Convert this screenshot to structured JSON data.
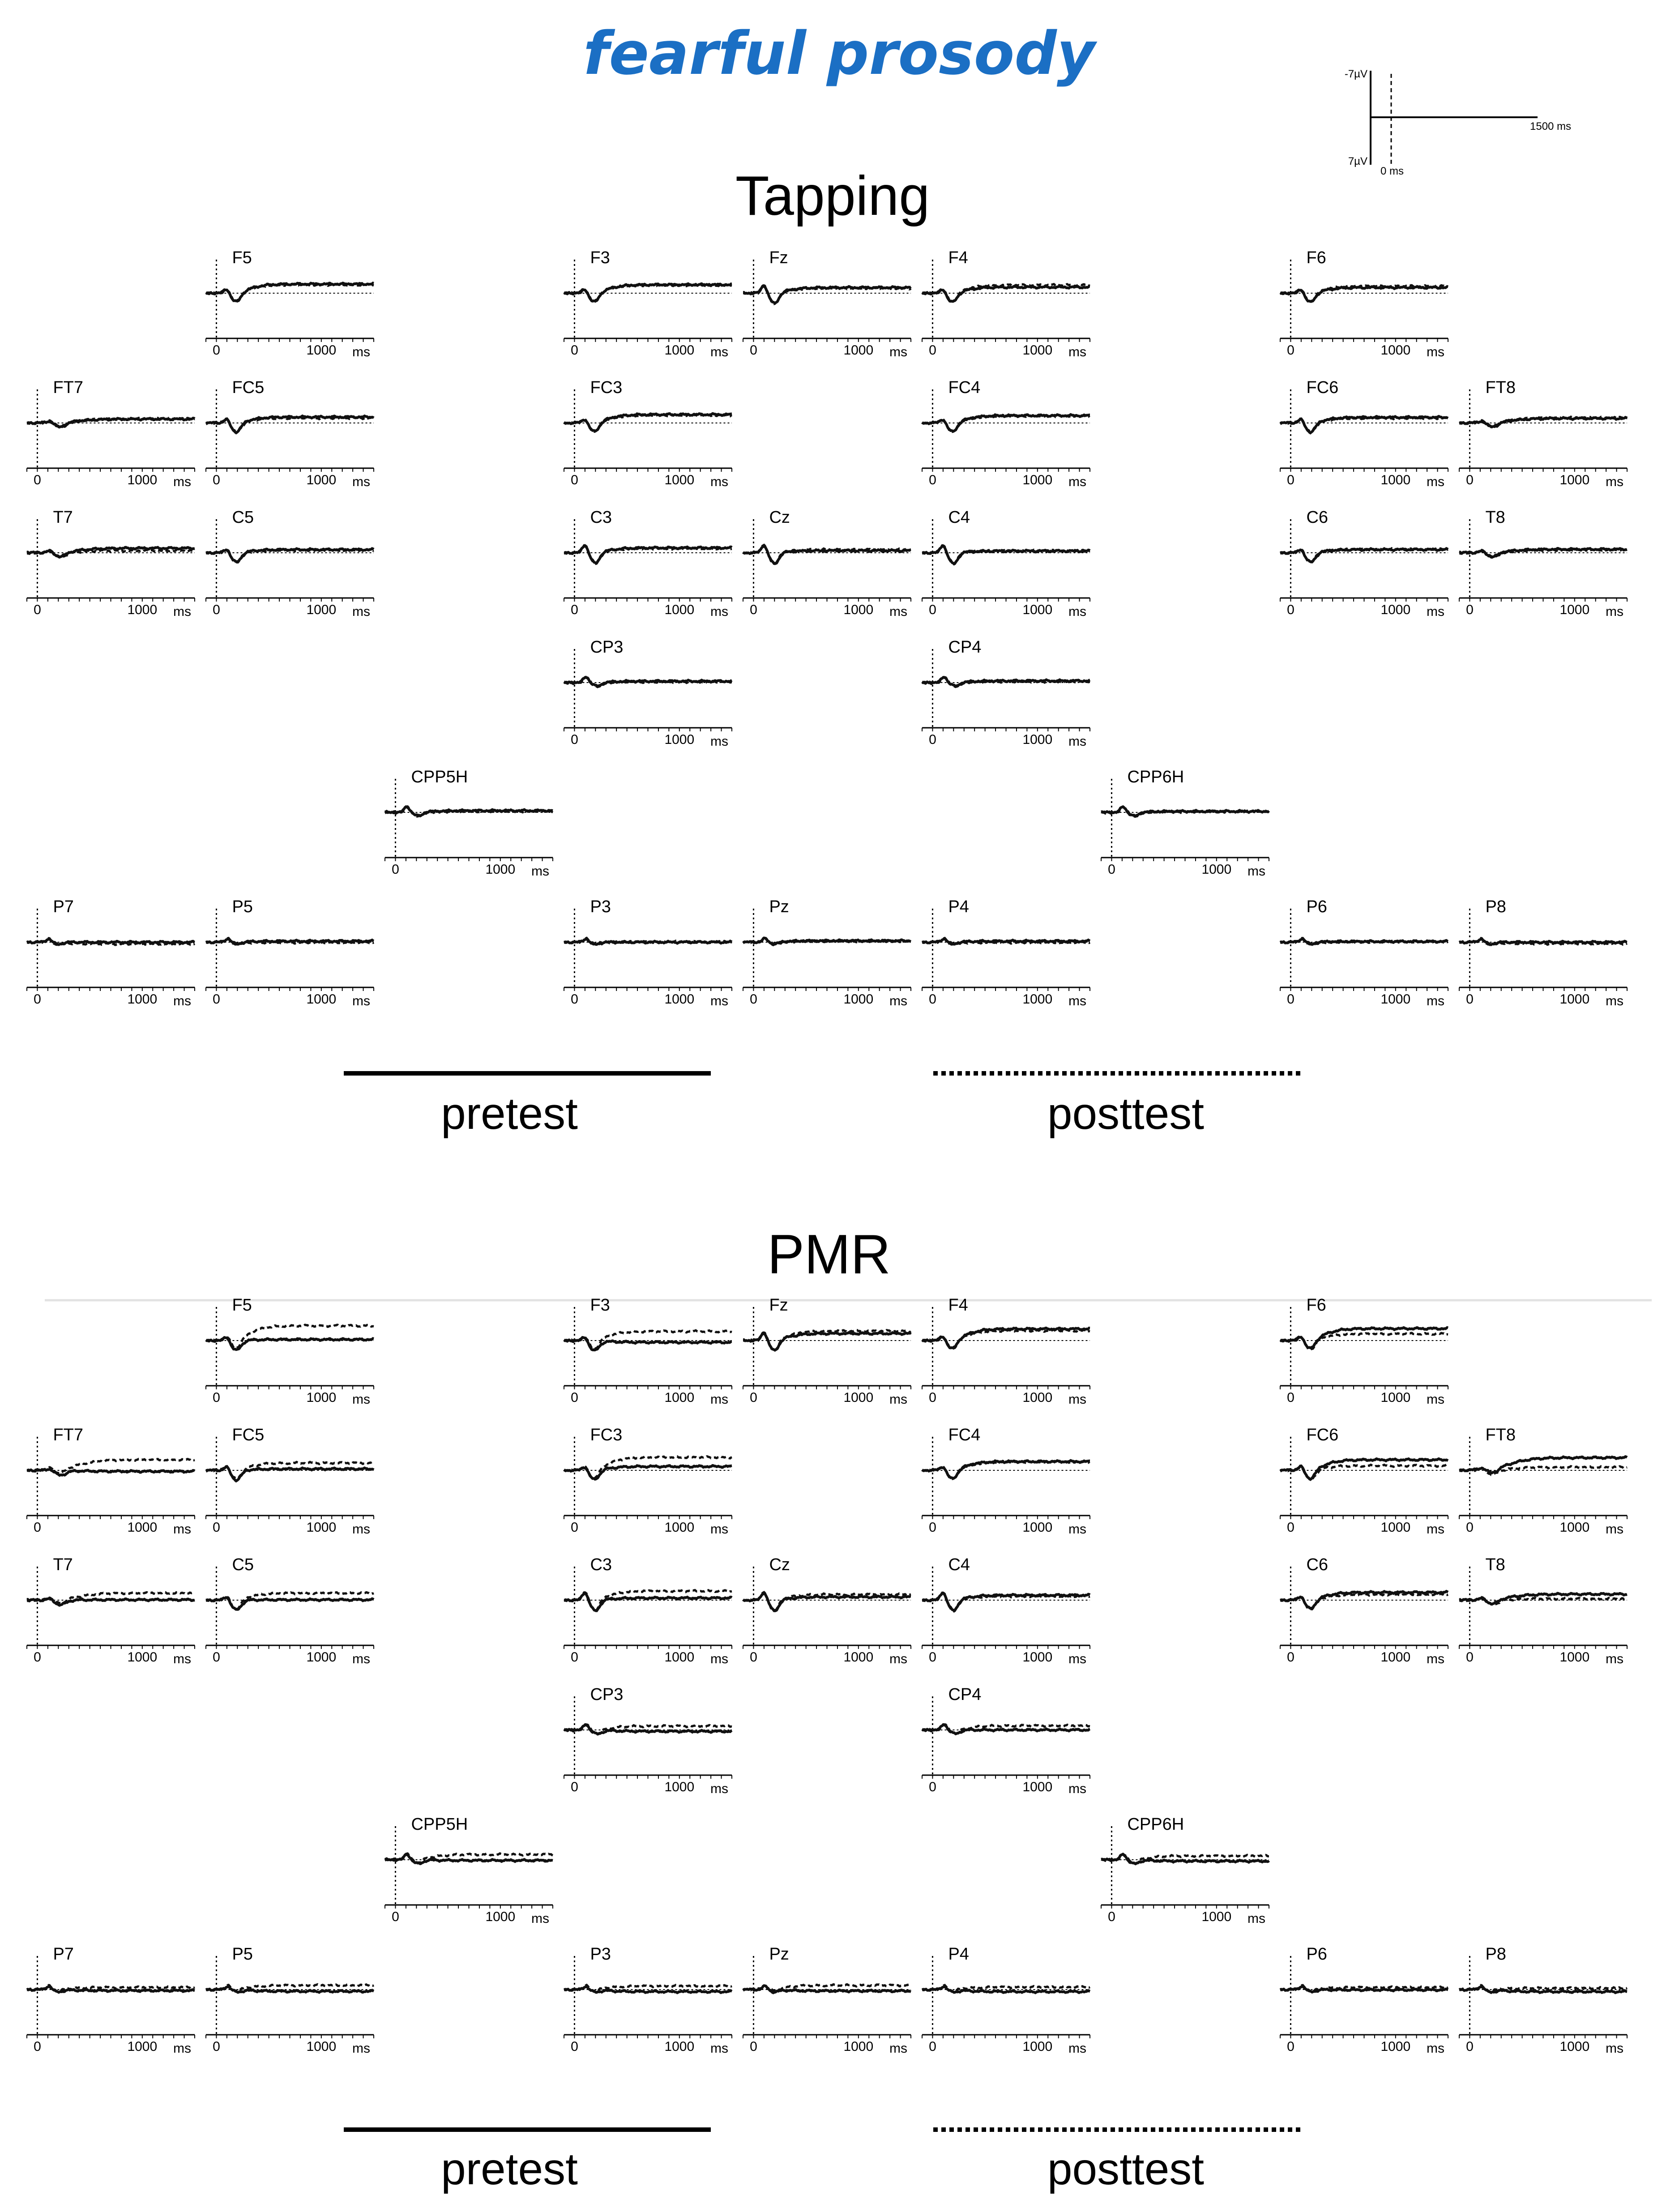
{
  "figure_title": "fearful prosody",
  "scale_bar": {
    "top_label": "-7µV",
    "bottom_label": "7µV",
    "end_label": "1500 ms",
    "zero_label": "0 ms"
  },
  "legend": {
    "pretest_label": "pretest",
    "posttest_label": "posttest",
    "pretest_style": "solid",
    "posttest_style": "dotted"
  },
  "axis_labels": {
    "zero": "0",
    "tick": "1000",
    "unit": "ms"
  },
  "chart_data": [
    {
      "type": "line",
      "title": "Tapping",
      "x_range_ms": [
        -100,
        1500
      ],
      "y_range_uV": [
        -7,
        7
      ],
      "series": [
        {
          "name": "pretest",
          "style": "solid"
        },
        {
          "name": "posttest",
          "style": "dotted"
        }
      ],
      "electrodes": [
        {
          "label": "F5",
          "profile": "frontal-shift",
          "pre_shift": -2.6,
          "post_shift": -2.4
        },
        {
          "label": "F3",
          "profile": "frontal-shift",
          "pre_shift": -2.4,
          "post_shift": -2.3
        },
        {
          "label": "Fz",
          "profile": "central-dip",
          "pre_shift": -1.6,
          "post_shift": -1.4
        },
        {
          "label": "F4",
          "profile": "frontal-shift",
          "pre_shift": -1.7,
          "post_shift": -2.3
        },
        {
          "label": "F6",
          "profile": "frontal-shift",
          "pre_shift": -1.6,
          "post_shift": -2.0
        },
        {
          "label": "FT7",
          "profile": "flat-shift",
          "pre_shift": -1.1,
          "post_shift": -1.2
        },
        {
          "label": "FC5",
          "profile": "frontal-shift",
          "pre_shift": -1.7,
          "post_shift": -1.4
        },
        {
          "label": "FC3",
          "profile": "frontal-shift",
          "pre_shift": -2.4,
          "post_shift": -2.2
        },
        {
          "label": "FC4",
          "profile": "frontal-shift",
          "pre_shift": -2.1,
          "post_shift": -2.0
        },
        {
          "label": "FC6",
          "profile": "frontal-shift",
          "pre_shift": -1.6,
          "post_shift": -1.4
        },
        {
          "label": "FT8",
          "profile": "flat-shift",
          "pre_shift": -1.3,
          "post_shift": -1.5
        },
        {
          "label": "T7",
          "profile": "flat-shift",
          "pre_shift": -1.3,
          "post_shift": -0.6
        },
        {
          "label": "C5",
          "profile": "frontal-shift",
          "pre_shift": -0.9,
          "post_shift": -0.7
        },
        {
          "label": "C3",
          "profile": "central-dip",
          "pre_shift": -1.4,
          "post_shift": -1.2
        },
        {
          "label": "Cz",
          "profile": "central-dip",
          "pre_shift": -0.6,
          "post_shift": -0.9
        },
        {
          "label": "C4",
          "profile": "central-dip",
          "pre_shift": -0.5,
          "post_shift": -0.6
        },
        {
          "label": "C6",
          "profile": "frontal-shift",
          "pre_shift": -0.9,
          "post_shift": -1.0
        },
        {
          "label": "T8",
          "profile": "flat-shift",
          "pre_shift": -1.0,
          "post_shift": -0.8
        },
        {
          "label": "CP3",
          "profile": "posterior",
          "pre_shift": -0.4,
          "post_shift": -0.2
        },
        {
          "label": "CP4",
          "profile": "posterior",
          "pre_shift": -0.5,
          "post_shift": -0.3
        },
        {
          "label": "CPP5H",
          "profile": "posterior",
          "pre_shift": -0.5,
          "post_shift": -0.3
        },
        {
          "label": "CPP6H",
          "profile": "posterior",
          "pre_shift": -0.3,
          "post_shift": -0.2
        },
        {
          "label": "P7",
          "profile": "parietal",
          "pre_shift": 0.0,
          "post_shift": 0.5
        },
        {
          "label": "P5",
          "profile": "parietal",
          "pre_shift": -0.3,
          "post_shift": 0.1
        },
        {
          "label": "P3",
          "profile": "parietal",
          "pre_shift": 0.0,
          "post_shift": -0.1
        },
        {
          "label": "Pz",
          "profile": "parietal",
          "pre_shift": -0.4,
          "post_shift": -0.3
        },
        {
          "label": "P4",
          "profile": "parietal",
          "pre_shift": -0.3,
          "post_shift": 0.1
        },
        {
          "label": "P6",
          "profile": "parietal",
          "pre_shift": -0.2,
          "post_shift": -0.1
        },
        {
          "label": "P8",
          "profile": "parietal",
          "pre_shift": 0.0,
          "post_shift": 0.4
        }
      ]
    },
    {
      "type": "line",
      "title": "PMR",
      "x_range_ms": [
        -100,
        1500
      ],
      "y_range_uV": [
        -7,
        7
      ],
      "series": [
        {
          "name": "pretest",
          "style": "solid"
        },
        {
          "name": "posttest",
          "style": "dotted"
        }
      ],
      "electrodes": [
        {
          "label": "F5",
          "profile": "frontal-shift",
          "pre_shift": -0.3,
          "post_shift": -4.2
        },
        {
          "label": "F3",
          "profile": "frontal-shift",
          "pre_shift": 0.5,
          "post_shift": -2.6
        },
        {
          "label": "Fz",
          "profile": "central-dip",
          "pre_shift": -2.0,
          "post_shift": -2.7
        },
        {
          "label": "F4",
          "profile": "frontal-shift",
          "pre_shift": -3.3,
          "post_shift": -2.8
        },
        {
          "label": "F6",
          "profile": "frontal-shift",
          "pre_shift": -3.4,
          "post_shift": -1.9
        },
        {
          "label": "FT7",
          "profile": "flat-shift",
          "pre_shift": 0.3,
          "post_shift": -3.0
        },
        {
          "label": "FC5",
          "profile": "frontal-shift",
          "pre_shift": -0.4,
          "post_shift": -2.1
        },
        {
          "label": "FC3",
          "profile": "frontal-shift",
          "pre_shift": -1.1,
          "post_shift": -3.7
        },
        {
          "label": "FC4",
          "profile": "frontal-shift",
          "pre_shift": -2.5,
          "post_shift": -2.4
        },
        {
          "label": "FC6",
          "profile": "frontal-shift",
          "pre_shift": -3.0,
          "post_shift": -1.3
        },
        {
          "label": "FT8",
          "profile": "flat-shift",
          "pre_shift": -3.6,
          "post_shift": -0.9
        },
        {
          "label": "T7",
          "profile": "flat-shift",
          "pre_shift": -0.1,
          "post_shift": -2.0
        },
        {
          "label": "C5",
          "profile": "frontal-shift",
          "pre_shift": -0.1,
          "post_shift": -2.0
        },
        {
          "label": "C3",
          "profile": "central-dip",
          "pre_shift": -0.6,
          "post_shift": -2.6
        },
        {
          "label": "Cz",
          "profile": "central-dip",
          "pre_shift": -0.9,
          "post_shift": -1.6
        },
        {
          "label": "C4",
          "profile": "central-dip",
          "pre_shift": -1.4,
          "post_shift": -1.1
        },
        {
          "label": "C6",
          "profile": "frontal-shift",
          "pre_shift": -2.2,
          "post_shift": -1.6
        },
        {
          "label": "T8",
          "profile": "flat-shift",
          "pre_shift": -1.7,
          "post_shift": -0.4
        },
        {
          "label": "CP3",
          "profile": "posterior",
          "pre_shift": 0.4,
          "post_shift": -1.1
        },
        {
          "label": "CP4",
          "profile": "posterior",
          "pre_shift": 0.0,
          "post_shift": -1.2
        },
        {
          "label": "CPP5H",
          "profile": "posterior",
          "pre_shift": 0.2,
          "post_shift": -1.5
        },
        {
          "label": "CPP6H",
          "profile": "posterior",
          "pre_shift": 0.4,
          "post_shift": -1.1
        },
        {
          "label": "P7",
          "profile": "parietal",
          "pre_shift": 0.3,
          "post_shift": -0.6
        },
        {
          "label": "P5",
          "profile": "parietal",
          "pre_shift": 0.5,
          "post_shift": -1.2
        },
        {
          "label": "P3",
          "profile": "parietal",
          "pre_shift": 0.6,
          "post_shift": -1.0
        },
        {
          "label": "Pz",
          "profile": "parietal",
          "pre_shift": 0.4,
          "post_shift": -1.2
        },
        {
          "label": "P4",
          "profile": "parietal",
          "pre_shift": 0.6,
          "post_shift": -0.7
        },
        {
          "label": "P6",
          "profile": "parietal",
          "pre_shift": 0.1,
          "post_shift": -0.6
        },
        {
          "label": "P8",
          "profile": "parietal",
          "pre_shift": 0.6,
          "post_shift": -0.4
        }
      ]
    }
  ]
}
